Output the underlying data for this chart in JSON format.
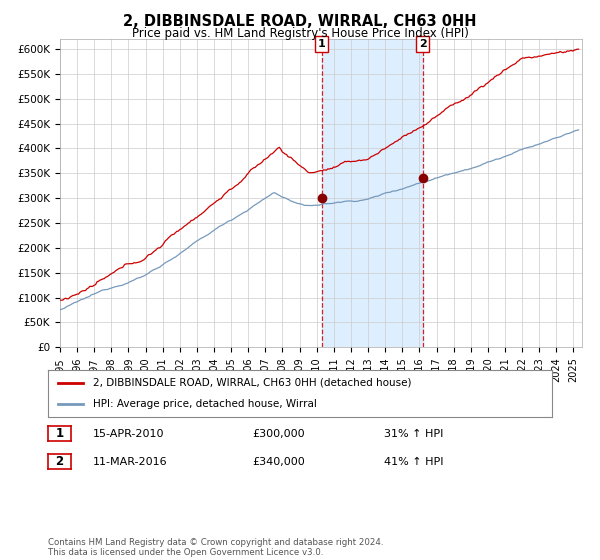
{
  "title": "2, DIBBINSDALE ROAD, WIRRAL, CH63 0HH",
  "subtitle": "Price paid vs. HM Land Registry's House Price Index (HPI)",
  "ylabel_ticks": [
    "£0",
    "£50K",
    "£100K",
    "£150K",
    "£200K",
    "£250K",
    "£300K",
    "£350K",
    "£400K",
    "£450K",
    "£500K",
    "£550K",
    "£600K"
  ],
  "ylim": [
    0,
    620000
  ],
  "xlim_start": 1995.0,
  "xlim_end": 2025.5,
  "sale1_x": 2010.29,
  "sale1_y": 300000,
  "sale1_label": "1",
  "sale2_x": 2016.19,
  "sale2_y": 340000,
  "sale2_label": "2",
  "legend_line1": "2, DIBBINSDALE ROAD, WIRRAL, CH63 0HH (detached house)",
  "legend_line2": "HPI: Average price, detached house, Wirral",
  "note1_label": "1",
  "note1_date": "15-APR-2010",
  "note1_price": "£300,000",
  "note1_hpi": "31% ↑ HPI",
  "note2_label": "2",
  "note2_date": "11-MAR-2016",
  "note2_price": "£340,000",
  "note2_hpi": "41% ↑ HPI",
  "footer": "Contains HM Land Registry data © Crown copyright and database right 2024.\nThis data is licensed under the Open Government Licence v3.0.",
  "line_color_red": "#cc0000",
  "line_color_blue": "#7799bb",
  "shade_color": "#ddeeff",
  "grid_color": "#cccccc",
  "background_color": "#ffffff",
  "annotation_box_color": "#cc0000"
}
